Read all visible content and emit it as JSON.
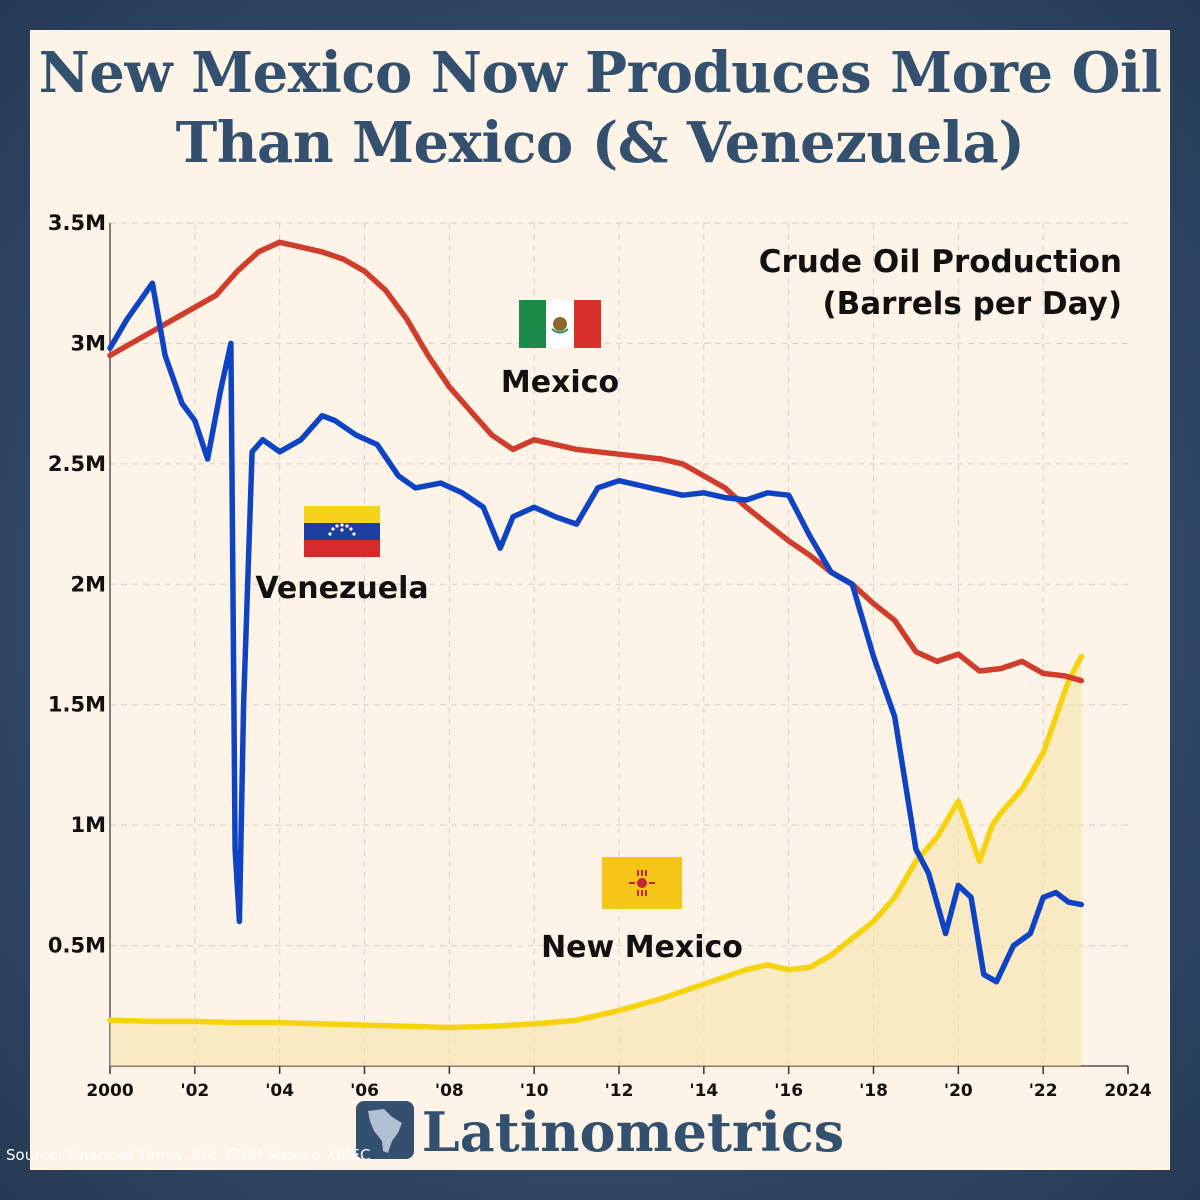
{
  "title": "New Mexico Now Produces More Oil Than Mexico (& Venezuela)",
  "brand": "Latinometrics",
  "source": "Source: Financial Times, EIA, CNIH Mexico, OPEC",
  "colors": {
    "mexico": "#cf3e2d",
    "venezuela": "#0e44c4",
    "new_mexico": "#f5d40f",
    "title": "#34506f"
  },
  "chart_data": {
    "type": "line",
    "subtitle_lines": [
      "Crude Oil Production",
      "(Barrels per Day)"
    ],
    "y_ticks": [
      {
        "v": 3500000,
        "label": "3.5M"
      },
      {
        "v": 3000000,
        "label": "3M"
      },
      {
        "v": 2500000,
        "label": "2.5M"
      },
      {
        "v": 2000000,
        "label": "2M"
      },
      {
        "v": 1500000,
        "label": "1.5M"
      },
      {
        "v": 1000000,
        "label": "1M"
      },
      {
        "v": 500000,
        "label": "0.5M"
      }
    ],
    "x_ticks": [
      {
        "v": 2000,
        "label": "2000"
      },
      {
        "v": 2002,
        "label": "'02"
      },
      {
        "v": 2004,
        "label": "'04"
      },
      {
        "v": 2006,
        "label": "'06"
      },
      {
        "v": 2008,
        "label": "'08"
      },
      {
        "v": 2010,
        "label": "'10"
      },
      {
        "v": 2012,
        "label": "'12"
      },
      {
        "v": 2014,
        "label": "'14"
      },
      {
        "v": 2016,
        "label": "'16"
      },
      {
        "v": 2018,
        "label": "'18"
      },
      {
        "v": 2020,
        "label": "'20"
      },
      {
        "v": 2022,
        "label": "'22"
      },
      {
        "v": 2024,
        "label": "2024"
      }
    ],
    "xlim": [
      2000,
      2024
    ],
    "ylim": [
      0,
      3500000
    ],
    "grid": true,
    "series": [
      {
        "name": "Mexico",
        "key": "mexico",
        "x": [
          2000,
          2000.5,
          2001,
          2001.5,
          2002,
          2002.5,
          2003,
          2003.5,
          2004,
          2004.5,
          2005,
          2005.5,
          2006,
          2006.5,
          2007,
          2007.5,
          2008,
          2008.5,
          2009,
          2009.5,
          2010,
          2010.5,
          2011,
          2011.5,
          2012,
          2012.5,
          2013,
          2013.5,
          2014,
          2014.5,
          2015,
          2015.5,
          2016,
          2016.5,
          2017,
          2017.5,
          2018,
          2018.5,
          2019,
          2019.5,
          2020,
          2020.5,
          2021,
          2021.5,
          2022,
          2022.5,
          2022.9
        ],
        "y": [
          2950000,
          3000000,
          3050000,
          3100000,
          3150000,
          3200000,
          3300000,
          3380000,
          3420000,
          3400000,
          3380000,
          3350000,
          3300000,
          3220000,
          3100000,
          2950000,
          2820000,
          2720000,
          2620000,
          2560000,
          2600000,
          2580000,
          2560000,
          2550000,
          2540000,
          2530000,
          2520000,
          2500000,
          2450000,
          2400000,
          2320000,
          2250000,
          2180000,
          2120000,
          2050000,
          2000000,
          1920000,
          1850000,
          1720000,
          1680000,
          1710000,
          1640000,
          1650000,
          1680000,
          1630000,
          1620000,
          1600000
        ]
      },
      {
        "name": "Venezuela",
        "key": "venezuela",
        "x": [
          2000,
          2000.4,
          2000.8,
          2001,
          2001.3,
          2001.7,
          2002,
          2002.3,
          2002.6,
          2002.85,
          2002.95,
          2003.05,
          2003.15,
          2003.35,
          2003.6,
          2004,
          2004.5,
          2005,
          2005.3,
          2005.8,
          2006.3,
          2006.8,
          2007.2,
          2007.8,
          2008.3,
          2008.8,
          2009.2,
          2009.5,
          2010,
          2010.5,
          2011,
          2011.5,
          2012,
          2012.5,
          2013,
          2013.5,
          2014,
          2014.5,
          2015,
          2015.5,
          2016,
          2016.5,
          2017,
          2017.5,
          2018,
          2018.5,
          2019,
          2019.3,
          2019.7,
          2020,
          2020.3,
          2020.6,
          2020.9,
          2021.3,
          2021.7,
          2022,
          2022.3,
          2022.6,
          2022.9
        ],
        "y": [
          2980000,
          3100000,
          3200000,
          3250000,
          2950000,
          2750000,
          2680000,
          2520000,
          2800000,
          3000000,
          900000,
          600000,
          1500000,
          2550000,
          2600000,
          2550000,
          2600000,
          2700000,
          2680000,
          2620000,
          2580000,
          2450000,
          2400000,
          2420000,
          2380000,
          2320000,
          2150000,
          2280000,
          2320000,
          2280000,
          2250000,
          2400000,
          2430000,
          2410000,
          2390000,
          2370000,
          2380000,
          2360000,
          2350000,
          2380000,
          2370000,
          2200000,
          2050000,
          2000000,
          1700000,
          1450000,
          900000,
          800000,
          550000,
          750000,
          700000,
          380000,
          350000,
          500000,
          550000,
          700000,
          720000,
          680000,
          670000
        ]
      },
      {
        "name": "New Mexico",
        "key": "new_mexico",
        "x": [
          2000,
          2001,
          2002,
          2003,
          2004,
          2005,
          2006,
          2007,
          2008,
          2009,
          2010,
          2011,
          2012,
          2013,
          2014,
          2014.5,
          2015,
          2015.5,
          2016,
          2016.5,
          2017,
          2017.5,
          2018,
          2018.5,
          2019,
          2019.5,
          2020,
          2020.3,
          2020.5,
          2020.8,
          2021,
          2021.5,
          2022,
          2022.3,
          2022.6,
          2022.9
        ],
        "y": [
          190000,
          185000,
          185000,
          180000,
          180000,
          175000,
          170000,
          165000,
          160000,
          165000,
          175000,
          190000,
          230000,
          280000,
          340000,
          370000,
          400000,
          420000,
          400000,
          410000,
          460000,
          530000,
          600000,
          700000,
          850000,
          950000,
          1100000,
          950000,
          850000,
          1000000,
          1050000,
          1150000,
          1300000,
          1450000,
          1600000,
          1700000
        ]
      }
    ],
    "labels": {
      "mexico": "Mexico",
      "venezuela": "Venezuela",
      "new_mexico": "New Mexico"
    }
  }
}
